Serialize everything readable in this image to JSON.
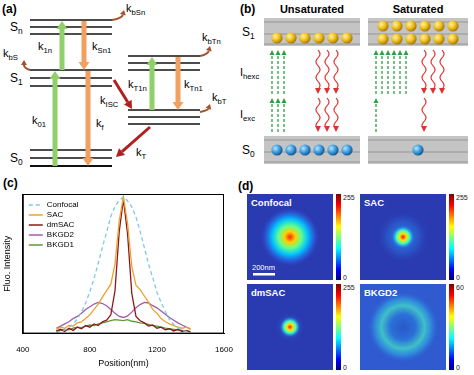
{
  "panel_a": {
    "label": "(a)",
    "levels": {
      "Sn": {
        "text": "S",
        "sub": "n"
      },
      "S1": {
        "text": "S",
        "sub": "1"
      },
      "S0": {
        "text": "S",
        "sub": "0"
      }
    },
    "rates": {
      "bSn": {
        "text": "k",
        "sub": "bSn"
      },
      "bS": {
        "text": "k",
        "sub": "bS"
      },
      "1n": {
        "text": "k",
        "sub": "1n"
      },
      "Sn1": {
        "text": "k",
        "sub": "Sn1"
      },
      "01": {
        "text": "k",
        "sub": "01"
      },
      "f": {
        "text": "k",
        "sub": "f"
      },
      "ISC": {
        "text": "k",
        "sub": "ISC"
      },
      "T": {
        "text": "k",
        "sub": "T"
      },
      "T1n": {
        "text": "k",
        "sub": "T1n"
      },
      "Tn1": {
        "text": "k",
        "sub": "Tn1"
      },
      "bTn": {
        "text": "k",
        "sub": "bTn"
      },
      "bT": {
        "text": "k",
        "sub": "bT"
      }
    }
  },
  "panel_b": {
    "label": "(b)",
    "levels": {
      "S1": {
        "text": "S",
        "sub": "1"
      },
      "S0": {
        "text": "S",
        "sub": "0"
      }
    },
    "rows": [
      {
        "text": "I",
        "sub": "hexc"
      },
      {
        "text": "I",
        "sub": "exc"
      }
    ],
    "columns": [
      {
        "title": "Unsaturated",
        "S1": 6,
        "S0": 6,
        "arrows": [
          {
            "excitation": 3,
            "emission": 3
          },
          {
            "excitation": 3,
            "emission": 3
          }
        ]
      },
      {
        "title": "Saturated",
        "S1": 12,
        "S0": 1,
        "arrows": [
          {
            "excitation": 6,
            "emission": 3
          },
          {
            "excitation": 1,
            "emission": 1
          }
        ]
      }
    ]
  },
  "chart_data": {
    "type": "line",
    "panel_label": "(c)",
    "x_label": "Position(nm)",
    "y_label": "Fluo. Intensity",
    "x": [
      600,
      625,
      650,
      675,
      700,
      725,
      750,
      775,
      800,
      825,
      850,
      875,
      900,
      925,
      950,
      975,
      1000,
      1025,
      1050,
      1075,
      1100,
      1125,
      1150,
      1175,
      1200,
      1225,
      1250,
      1275,
      1300,
      1325,
      1350,
      1375,
      1400
    ],
    "series": [
      {
        "name": "Confocal",
        "color": "#7ec8e3",
        "line_style": "dashed",
        "values": [
          2,
          4,
          7,
          11,
          18,
          27,
          40,
          57,
          78,
          103,
          131,
          161,
          189,
          218,
          237,
          248,
          255,
          247,
          236,
          217,
          190,
          160,
          130,
          104,
          77,
          58,
          41,
          26,
          17,
          12,
          6,
          4,
          2
        ]
      },
      {
        "name": "SAC",
        "color": "#f0a030",
        "line_style": "solid",
        "values": [
          8,
          12,
          10,
          15,
          14,
          20,
          22,
          28,
          35,
          45,
          55,
          68,
          80,
          92,
          130,
          210,
          255,
          205,
          125,
          90,
          82,
          70,
          58,
          45,
          38,
          28,
          22,
          18,
          15,
          12,
          10,
          12,
          8
        ]
      },
      {
        "name": "dmSAC",
        "color": "#8b1a1a",
        "line_style": "solid",
        "values": [
          5,
          8,
          4,
          10,
          6,
          12,
          9,
          15,
          12,
          18,
          15,
          22,
          25,
          35,
          80,
          190,
          250,
          185,
          75,
          32,
          24,
          20,
          14,
          16,
          10,
          12,
          7,
          9,
          5,
          8,
          4,
          6,
          3
        ]
      },
      {
        "name": "BKGD2",
        "color": "#a05ca8",
        "line_style": "solid",
        "values": [
          10,
          14,
          18,
          22,
          28,
          32,
          38,
          45,
          50,
          55,
          58,
          56,
          52,
          45,
          38,
          32,
          30,
          33,
          40,
          48,
          54,
          58,
          57,
          52,
          48,
          42,
          36,
          30,
          25,
          20,
          16,
          12,
          9
        ]
      },
      {
        "name": "BKGD1",
        "color": "#5a9a3a",
        "line_style": "solid",
        "values": [
          4,
          6,
          8,
          7,
          10,
          12,
          11,
          14,
          16,
          15,
          18,
          20,
          22,
          24,
          26,
          25,
          24,
          26,
          23,
          22,
          20,
          19,
          17,
          15,
          14,
          12,
          10,
          9,
          8,
          7,
          6,
          5,
          4
        ]
      }
    ],
    "xlim": [
      400,
      1600
    ],
    "xticks": [
      400,
      800,
      1200,
      1600
    ],
    "ylim": [
      0,
      260
    ],
    "tick_labels": "x",
    "grid": false,
    "legend": "upper left"
  },
  "panel_d": {
    "label": "(d)",
    "scale_bar": "200nm",
    "images": [
      {
        "title": "Confocal",
        "colorbar": {
          "range": [
            0,
            255
          ],
          "ticks": [
            0,
            255
          ]
        }
      },
      {
        "title": "SAC",
        "colorbar": {
          "range": [
            0,
            255
          ],
          "ticks": [
            0,
            255
          ]
        }
      },
      {
        "title": "dmSAC",
        "colorbar": {
          "range": [
            0,
            255
          ],
          "ticks": [
            0,
            255
          ]
        }
      },
      {
        "title": "BKGD2",
        "colorbar": {
          "range": [
            0,
            60
          ],
          "ticks": [
            0,
            60
          ]
        }
      }
    ]
  }
}
